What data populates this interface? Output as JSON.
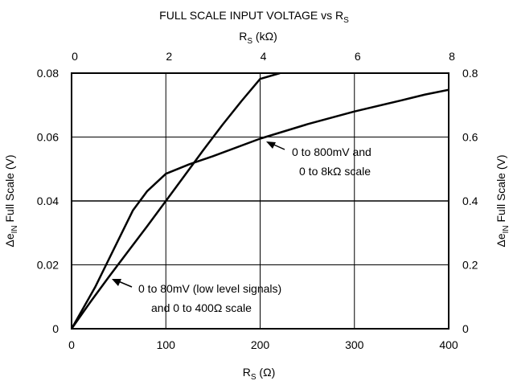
{
  "chart_data": {
    "type": "line",
    "title": "FULL SCALE INPUT VOLTAGE vs R",
    "title_sub": "S",
    "top_axis": {
      "label_main": "R",
      "label_sub": "S",
      "label_unit": " (kΩ)",
      "ticks": [
        "0",
        "2",
        "4",
        "6",
        "8"
      ],
      "range": [
        0,
        8
      ]
    },
    "bottom_axis": {
      "label_main": "R",
      "label_sub": "S",
      "label_unit": " (Ω)",
      "ticks": [
        "0",
        "100",
        "200",
        "300",
        "400"
      ],
      "range": [
        0,
        400
      ]
    },
    "left_axis": {
      "label_pre": "Δe",
      "label_sub": "IN",
      "label_post": " Full Scale (V)",
      "ticks": [
        "0",
        "0.02",
        "0.04",
        "0.06",
        "0.08"
      ],
      "range": [
        0,
        0.08
      ]
    },
    "right_axis": {
      "label_pre": "Δe",
      "label_sub": "IN",
      "label_post": " Full Scale (V)",
      "ticks": [
        "0",
        "0.2",
        "0.4",
        "0.6",
        "0.8"
      ],
      "range": [
        0,
        0.8
      ]
    },
    "grid": true,
    "series": [
      {
        "axes": "bottom-left",
        "x": [
          0,
          20,
          40,
          60,
          80,
          100,
          120,
          140,
          160,
          180,
          200,
          221
        ],
        "y": [
          0,
          0.0084,
          0.0164,
          0.0242,
          0.032,
          0.04,
          0.048,
          0.056,
          0.0638,
          0.0712,
          0.0782,
          0.08
        ]
      },
      {
        "axes": "top-right",
        "x": [
          0,
          0.5,
          1.0,
          1.3,
          1.6,
          2.0,
          2.5,
          3.0,
          4.0,
          5.0,
          6.0,
          7.0,
          7.5,
          8.0
        ],
        "y": [
          0,
          0.13,
          0.28,
          0.37,
          0.43,
          0.485,
          0.515,
          0.54,
          0.595,
          0.64,
          0.68,
          0.715,
          0.733,
          0.748
        ]
      }
    ],
    "annotations": [
      {
        "lines": [
          "0 to 800mV and",
          "0 to 8kΩ scale"
        ]
      },
      {
        "lines": [
          "0 to 80mV (low level signals)",
          "and 0 to 400Ω scale"
        ]
      }
    ]
  }
}
